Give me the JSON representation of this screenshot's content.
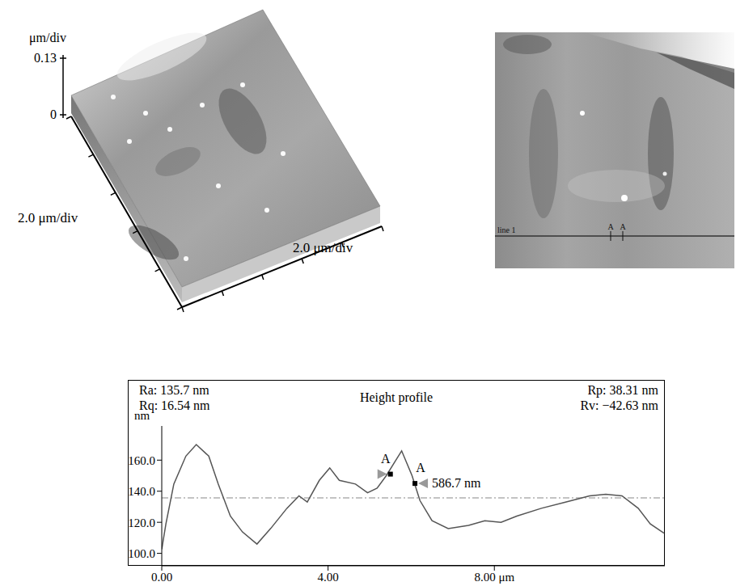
{
  "chart_data": {
    "type": "line",
    "title": "Height profile",
    "y_label": "nm",
    "statistics": [
      "Ra: 135.7 nm",
      "Rq: 16.54 nm",
      "Rp: 38.31 nm",
      "Rv: −42.63 nm"
    ],
    "x": [
      0,
      0.1,
      0.29,
      0.58,
      0.83,
      1.13,
      1.36,
      1.65,
      1.94,
      2.29,
      2.62,
      3.01,
      3.3,
      3.5,
      3.79,
      4.04,
      4.27,
      4.66,
      4.95,
      5.18,
      5.4,
      5.63,
      5.77,
      6.02,
      6.21,
      6.5,
      6.89,
      7.38,
      7.77,
      8.16,
      8.54,
      9.13,
      9.71,
      10.29,
      10.68,
      11.07,
      11.46,
      11.75,
      12.08
    ],
    "values": [
      102.6,
      119,
      144.6,
      162.6,
      170,
      162.6,
      144.6,
      124,
      113.8,
      106,
      116,
      129,
      137,
      133,
      147,
      155,
      147,
      144.6,
      139,
      142,
      150,
      160,
      166,
      150,
      134,
      121,
      116,
      118,
      121,
      120,
      124,
      129,
      133,
      137,
      138,
      137,
      129,
      119,
      113
    ],
    "color": "#555555",
    "xlim": [
      0,
      12.1
    ],
    "xticks": [
      {
        "value": 0,
        "label": "0.00"
      },
      {
        "value": 4,
        "label": "4.00"
      },
      {
        "value": 8,
        "label": "8.00 μm"
      }
    ],
    "ylim": [
      92,
      182
    ],
    "yticks": [
      {
        "value": 100,
        "label": "100.0"
      },
      {
        "value": 120,
        "label": "120.0"
      },
      {
        "value": 140,
        "label": "140.0"
      },
      {
        "value": 160,
        "label": "160.0"
      }
    ],
    "reference_y": 135.7,
    "cursors": [
      {
        "x": 5.5,
        "y": 151,
        "label": "A"
      },
      {
        "x": 6.09,
        "y": 145,
        "label": "A"
      }
    ],
    "cursor_distance": "586.7 nm",
    "grid": false
  },
  "surface_3d": {
    "z_label": "μm/div",
    "z_ticks": [
      0,
      0.13
    ],
    "x_label": "2.0 μm/div",
    "y_label": "2.0 μm/div"
  },
  "image_2d": {
    "line_label": "line 1",
    "cursor_labels": [
      "A",
      "A"
    ]
  }
}
